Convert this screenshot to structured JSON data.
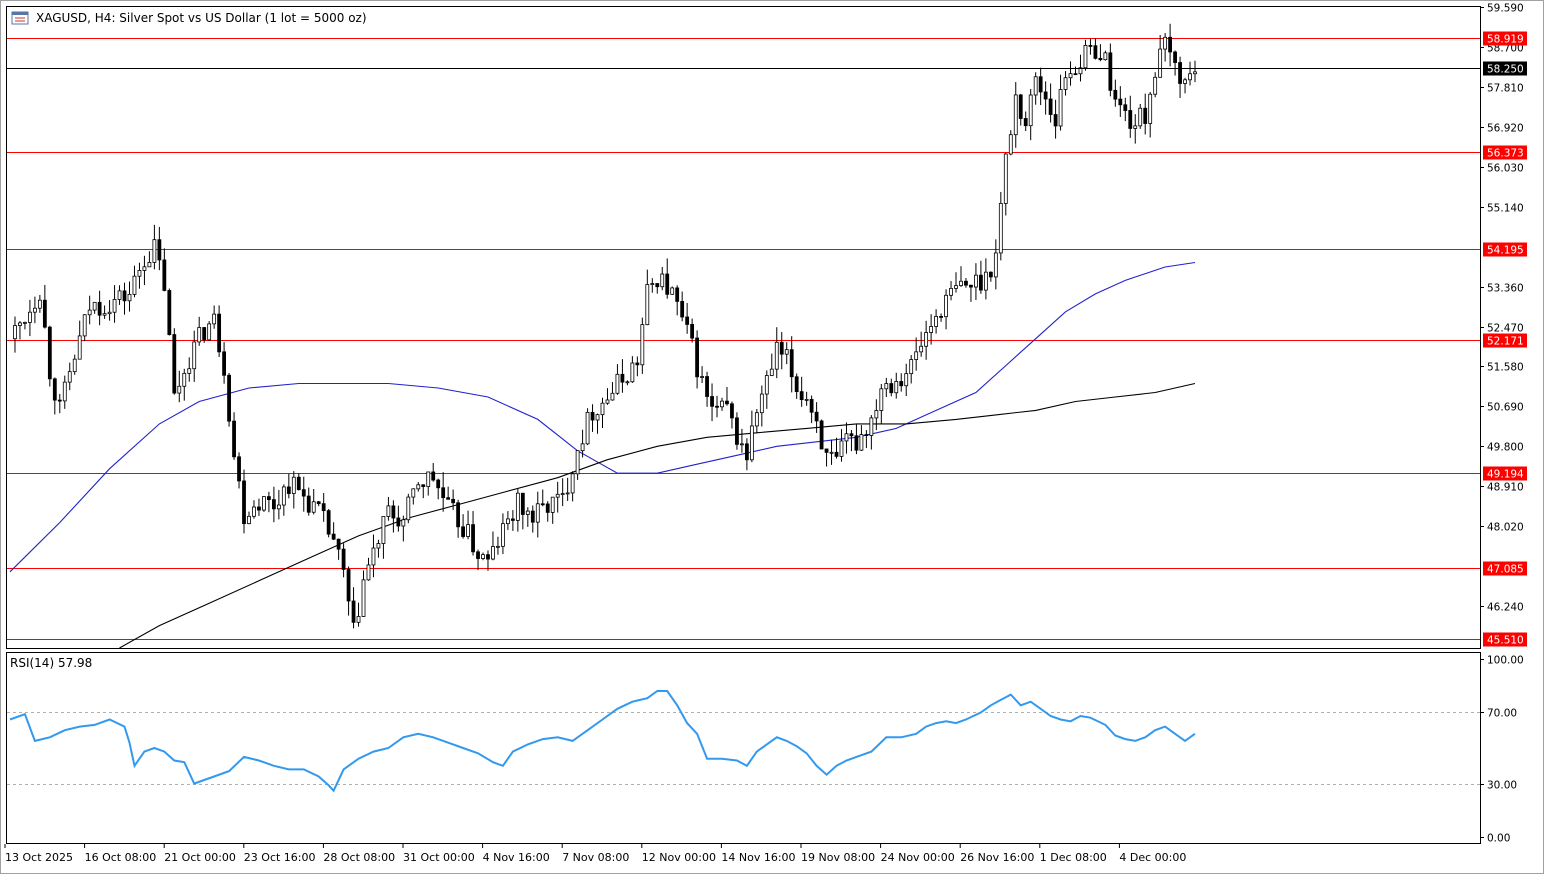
{
  "header": {
    "symbol_title": "XAGUSD, H4:  Silver Spot vs US Dollar (1 lot = 5000 oz)",
    "icon": "chart-window-icon"
  },
  "colors": {
    "background": "#ffffff",
    "candle": "#000000",
    "level_line": "#ff0000",
    "price_line": "#000000",
    "ma_fast": "#2222cc",
    "ma_slow": "#000000",
    "rsi_line": "#3399ee",
    "rsi_levels": "#b0b0b0"
  },
  "price_axis": {
    "ticks": [
      "59.590",
      "58.700",
      "57.810",
      "56.920",
      "56.030",
      "55.140",
      "53.360",
      "52.470",
      "51.580",
      "50.690",
      "49.800",
      "48.910",
      "48.020",
      "46.240"
    ],
    "current_price": "58.250"
  },
  "levels": [
    "58.919",
    "56.373",
    "54.195",
    "52.171",
    "49.194",
    "47.085",
    "45.510"
  ],
  "rsi_panel": {
    "label": "RSI(14) 57.98",
    "ticks": [
      "100.00",
      "70.00",
      "30.00",
      "0.00"
    ],
    "levels": [
      70,
      30
    ]
  },
  "x_axis": {
    "labels": [
      "13 Oct 2025",
      "16 Oct 08:00",
      "21 Oct 00:00",
      "23 Oct 16:00",
      "28 Oct 08:00",
      "31 Oct 00:00",
      "4 Nov 16:00",
      "7 Nov 08:00",
      "12 Nov 00:00",
      "14 Nov 16:00",
      "19 Nov 08:00",
      "24 Nov 00:00",
      "26 Nov 16:00",
      "1 Dec 08:00",
      "4 Dec 00:00"
    ]
  },
  "chart_data": {
    "type": "candlestick",
    "title": "XAGUSD, H4:  Silver Spot vs US Dollar (1 lot = 5000 oz)",
    "x_labels": [
      "13 Oct 2025",
      "16 Oct 08:00",
      "21 Oct 00:00",
      "23 Oct 16:00",
      "28 Oct 08:00",
      "31 Oct 00:00",
      "4 Nov 16:00",
      "7 Nov 08:00",
      "12 Nov 00:00",
      "14 Nov 16:00",
      "19 Nov 08:00",
      "24 Nov 00:00",
      "26 Nov 16:00",
      "1 Dec 08:00",
      "4 Dec 00:00"
    ],
    "ylim": [
      45.3,
      59.6
    ],
    "current_price": 58.25,
    "horizontal_levels": [
      58.919,
      56.373,
      54.195,
      52.171,
      49.194,
      47.085,
      45.51
    ],
    "close_path": [
      [
        0,
        52.2
      ],
      [
        3,
        52.7
      ],
      [
        6,
        53.3
      ],
      [
        8,
        51.5
      ],
      [
        10,
        50.6
      ],
      [
        13,
        51.8
      ],
      [
        16,
        52.9
      ],
      [
        20,
        53.0
      ],
      [
        24,
        53.2
      ],
      [
        27,
        54.0
      ],
      [
        29,
        54.2
      ],
      [
        31,
        53.4
      ],
      [
        33,
        50.9
      ],
      [
        36,
        51.8
      ],
      [
        39,
        52.4
      ],
      [
        41,
        52.6
      ],
      [
        43,
        51.6
      ],
      [
        45,
        49.6
      ],
      [
        47,
        48.3
      ],
      [
        50,
        48.6
      ],
      [
        53,
        48.5
      ],
      [
        56,
        49.0
      ],
      [
        59,
        48.7
      ],
      [
        62,
        48.3
      ],
      [
        65,
        47.7
      ],
      [
        67,
        46.9
      ],
      [
        69,
        45.6
      ],
      [
        71,
        46.8
      ],
      [
        73,
        47.4
      ],
      [
        76,
        48.3
      ],
      [
        79,
        48.1
      ],
      [
        82,
        49.0
      ],
      [
        85,
        49.1
      ],
      [
        88,
        48.4
      ],
      [
        91,
        48.0
      ],
      [
        94,
        47.4
      ],
      [
        96,
        47.2
      ],
      [
        99,
        47.9
      ],
      [
        102,
        48.5
      ],
      [
        105,
        48.2
      ],
      [
        108,
        48.5
      ],
      [
        111,
        48.6
      ],
      [
        114,
        49.8
      ],
      [
        117,
        50.6
      ],
      [
        120,
        50.9
      ],
      [
        123,
        51.3
      ],
      [
        126,
        51.7
      ],
      [
        128,
        53.2
      ],
      [
        130,
        53.6
      ],
      [
        133,
        53.2
      ],
      [
        135,
        52.6
      ],
      [
        137,
        52.0
      ],
      [
        139,
        51.2
      ],
      [
        141,
        50.6
      ],
      [
        144,
        50.6
      ],
      [
        146,
        50.0
      ],
      [
        148,
        49.6
      ],
      [
        150,
        50.6
      ],
      [
        152,
        51.2
      ],
      [
        154,
        51.9
      ],
      [
        156,
        51.7
      ],
      [
        158,
        51.1
      ],
      [
        160,
        50.9
      ],
      [
        162,
        50.4
      ],
      [
        164,
        49.5
      ],
      [
        166,
        49.4
      ],
      [
        168,
        49.9
      ],
      [
        170,
        49.9
      ],
      [
        173,
        50.4
      ],
      [
        175,
        51.2
      ],
      [
        178,
        51.3
      ],
      [
        181,
        51.6
      ],
      [
        184,
        52.3
      ],
      [
        187,
        52.9
      ],
      [
        190,
        53.3
      ],
      [
        193,
        53.4
      ],
      [
        196,
        53.6
      ],
      [
        198,
        54.1
      ],
      [
        200,
        56.2
      ],
      [
        202,
        57.6
      ],
      [
        204,
        57.0
      ],
      [
        206,
        58.0
      ],
      [
        208,
        57.6
      ],
      [
        210,
        57.1
      ],
      [
        212,
        58.1
      ],
      [
        214,
        58.3
      ],
      [
        216,
        58.5
      ],
      [
        218,
        58.7
      ],
      [
        220,
        58.4
      ],
      [
        222,
        57.5
      ],
      [
        224,
        57.2
      ],
      [
        226,
        57.0
      ],
      [
        228,
        57.2
      ],
      [
        230,
        58.2
      ],
      [
        232,
        58.7
      ],
      [
        234,
        58.3
      ],
      [
        236,
        57.9
      ],
      [
        238,
        58.25
      ]
    ],
    "series": [
      {
        "points": [
          [
            0,
            47.0
          ],
          [
            10,
            48.1
          ],
          [
            20,
            49.3
          ],
          [
            30,
            50.3
          ],
          [
            38,
            50.8
          ],
          [
            48,
            51.1
          ],
          [
            58,
            51.2
          ],
          [
            68,
            51.2
          ],
          [
            76,
            51.2
          ],
          [
            86,
            51.1
          ],
          [
            96,
            50.9
          ],
          [
            106,
            50.4
          ],
          [
            114,
            49.7
          ],
          [
            122,
            49.2
          ],
          [
            130,
            49.2
          ],
          [
            138,
            49.4
          ],
          [
            146,
            49.6
          ],
          [
            154,
            49.8
          ],
          [
            162,
            49.9
          ],
          [
            170,
            50.0
          ],
          [
            178,
            50.2
          ],
          [
            186,
            50.6
          ],
          [
            194,
            51.0
          ],
          [
            200,
            51.6
          ],
          [
            206,
            52.2
          ],
          [
            212,
            52.8
          ],
          [
            218,
            53.2
          ],
          [
            224,
            53.5
          ],
          [
            232,
            53.8
          ],
          [
            238,
            53.9
          ]
        ]
      },
      {
        "points": [
          [
            22,
            45.3
          ],
          [
            30,
            45.8
          ],
          [
            40,
            46.3
          ],
          [
            50,
            46.8
          ],
          [
            60,
            47.3
          ],
          [
            70,
            47.8
          ],
          [
            80,
            48.2
          ],
          [
            90,
            48.5
          ],
          [
            100,
            48.8
          ],
          [
            110,
            49.1
          ],
          [
            120,
            49.5
          ],
          [
            130,
            49.8
          ],
          [
            140,
            50.0
          ],
          [
            150,
            50.1
          ],
          [
            160,
            50.2
          ],
          [
            170,
            50.3
          ],
          [
            180,
            50.3
          ],
          [
            190,
            50.4
          ],
          [
            198,
            50.5
          ],
          [
            206,
            50.6
          ],
          [
            214,
            50.8
          ],
          [
            222,
            50.9
          ],
          [
            230,
            51.0
          ],
          [
            238,
            51.2
          ]
        ]
      }
    ],
    "rsi": {
      "label": "RSI(14) 57.98",
      "ylim": [
        0,
        100
      ],
      "levels": [
        70,
        30
      ],
      "points": [
        [
          0,
          66
        ],
        [
          3,
          69
        ],
        [
          5,
          54
        ],
        [
          8,
          56
        ],
        [
          11,
          60
        ],
        [
          14,
          62
        ],
        [
          17,
          63
        ],
        [
          20,
          66
        ],
        [
          23,
          62
        ],
        [
          24,
          53
        ],
        [
          25,
          40
        ],
        [
          27,
          48
        ],
        [
          29,
          50
        ],
        [
          31,
          48
        ],
        [
          33,
          43
        ],
        [
          35,
          42
        ],
        [
          37,
          30
        ],
        [
          39,
          32
        ],
        [
          41,
          34
        ],
        [
          44,
          37
        ],
        [
          47,
          45
        ],
        [
          50,
          43
        ],
        [
          53,
          40
        ],
        [
          56,
          38
        ],
        [
          59,
          38
        ],
        [
          62,
          34
        ],
        [
          64,
          29
        ],
        [
          65,
          26
        ],
        [
          67,
          38
        ],
        [
          70,
          44
        ],
        [
          73,
          48
        ],
        [
          76,
          50
        ],
        [
          79,
          56
        ],
        [
          82,
          58
        ],
        [
          85,
          56
        ],
        [
          88,
          53
        ],
        [
          91,
          50
        ],
        [
          94,
          47
        ],
        [
          97,
          42
        ],
        [
          99,
          40
        ],
        [
          101,
          48
        ],
        [
          104,
          52
        ],
        [
          107,
          55
        ],
        [
          110,
          56
        ],
        [
          113,
          54
        ],
        [
          116,
          60
        ],
        [
          119,
          66
        ],
        [
          122,
          72
        ],
        [
          125,
          76
        ],
        [
          128,
          78
        ],
        [
          130,
          82
        ],
        [
          132,
          82
        ],
        [
          134,
          74
        ],
        [
          136,
          64
        ],
        [
          138,
          58
        ],
        [
          140,
          44
        ],
        [
          143,
          44
        ],
        [
          146,
          43
        ],
        [
          148,
          40
        ],
        [
          150,
          48
        ],
        [
          152,
          52
        ],
        [
          154,
          56
        ],
        [
          156,
          54
        ],
        [
          158,
          51
        ],
        [
          160,
          47
        ],
        [
          162,
          40
        ],
        [
          164,
          35
        ],
        [
          166,
          40
        ],
        [
          168,
          43
        ],
        [
          170,
          45
        ],
        [
          173,
          48
        ],
        [
          176,
          56
        ],
        [
          179,
          56
        ],
        [
          182,
          58
        ],
        [
          184,
          62
        ],
        [
          186,
          64
        ],
        [
          188,
          65
        ],
        [
          190,
          64
        ],
        [
          192,
          66
        ],
        [
          195,
          70
        ],
        [
          197,
          74
        ],
        [
          199,
          77
        ],
        [
          201,
          80
        ],
        [
          203,
          74
        ],
        [
          205,
          76
        ],
        [
          207,
          72
        ],
        [
          209,
          68
        ],
        [
          211,
          66
        ],
        [
          213,
          65
        ],
        [
          215,
          68
        ],
        [
          217,
          67
        ],
        [
          220,
          63
        ],
        [
          222,
          57
        ],
        [
          224,
          55
        ],
        [
          226,
          54
        ],
        [
          228,
          56
        ],
        [
          230,
          60
        ],
        [
          232,
          62
        ],
        [
          234,
          58
        ],
        [
          236,
          54
        ],
        [
          238,
          58
        ]
      ]
    }
  }
}
